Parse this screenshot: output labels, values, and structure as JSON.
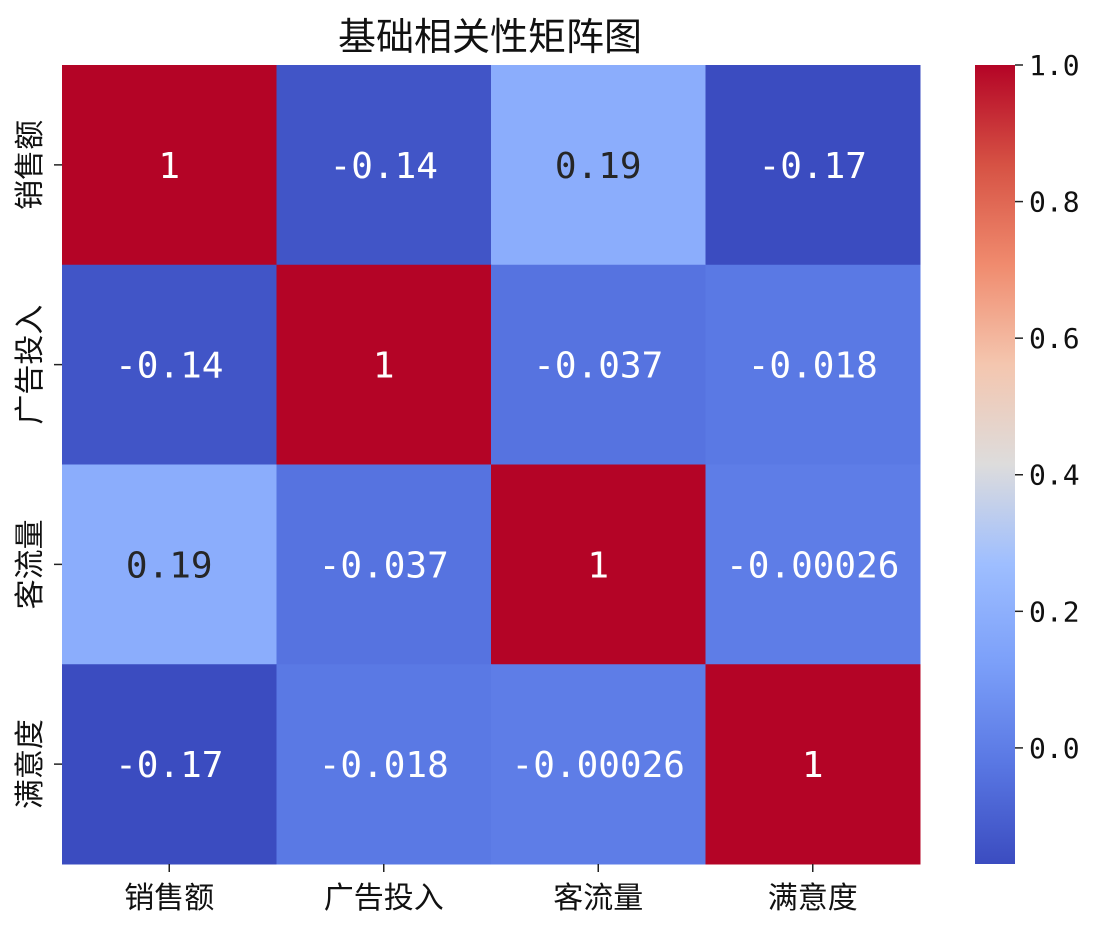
{
  "chart_data": {
    "type": "heatmap",
    "title": "基础相关性矩阵图",
    "categories": [
      "销售额",
      "广告投入",
      "客流量",
      "满意度"
    ],
    "values": [
      [
        1,
        -0.14,
        0.19,
        -0.17
      ],
      [
        -0.14,
        1,
        -0.037,
        -0.018
      ],
      [
        0.19,
        -0.037,
        1,
        -0.00026
      ],
      [
        -0.17,
        -0.018,
        -0.00026,
        1
      ]
    ],
    "labels": [
      [
        "1",
        "-0.14",
        "0.19",
        "-0.17"
      ],
      [
        "-0.14",
        "1",
        "-0.037",
        "-0.018"
      ],
      [
        "0.19",
        "-0.037",
        "1",
        "-0.00026"
      ],
      [
        "-0.17",
        "-0.018",
        "-0.00026",
        "1"
      ]
    ],
    "colormap": "coolwarm",
    "colorbar": {
      "range": [
        -0.17,
        1.0
      ],
      "ticks": [
        0.0,
        0.2,
        0.4,
        0.6,
        0.8,
        1.0
      ],
      "tick_labels": [
        "0.0",
        "0.2",
        "0.4",
        "0.6",
        "0.8",
        "1.0"
      ]
    }
  }
}
